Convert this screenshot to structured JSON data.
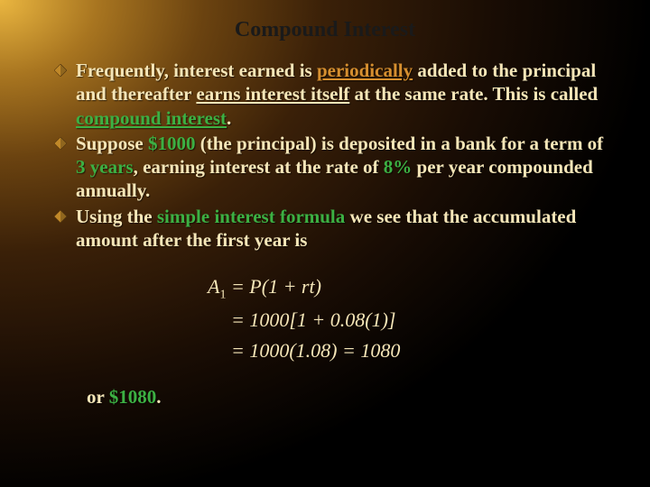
{
  "title": "Compound Interest",
  "bullets": [
    {
      "parts": [
        {
          "t": "Frequently, interest earned is "
        },
        {
          "t": "periodically",
          "cls": "hl-periodic"
        },
        {
          "t": " added to the principal and thereafter "
        },
        {
          "t": "earns interest itself",
          "cls": "hl-earns"
        },
        {
          "t": " at the same rate. This is called "
        },
        {
          "t": "compound interest",
          "cls": "hl-compound"
        },
        {
          "t": "."
        }
      ]
    },
    {
      "parts": [
        {
          "t": "Suppose "
        },
        {
          "t": "$1000",
          "cls": "hl-money"
        },
        {
          "t": " (the principal) is deposited in a bank for a term of "
        },
        {
          "t": "3 years",
          "cls": "hl-num"
        },
        {
          "t": ", earning interest at the rate of "
        },
        {
          "t": "8%",
          "cls": "hl-num"
        },
        {
          "t": " per year compounded annually."
        }
      ]
    },
    {
      "parts": [
        {
          "t": "Using the "
        },
        {
          "t": "simple interest formula",
          "cls": "hl-simple"
        },
        {
          "t": " we see that the accumulated amount after the first year is"
        }
      ]
    }
  ],
  "bullet_icon": {
    "fill": "#c08828",
    "stroke": "#5a3a10",
    "size": 14
  },
  "formula": {
    "line1_lhs_var": "A",
    "line1_lhs_sub": "1",
    "line1_rest": " = P(1 + rt)",
    "line2": "= 1000[1 + 0.08(1)]",
    "line3": "= 1000(1.08) = 1080",
    "text_color": "#f5e6b8"
  },
  "closing": {
    "pre": "or ",
    "amount": "$1080",
    "post": "."
  }
}
